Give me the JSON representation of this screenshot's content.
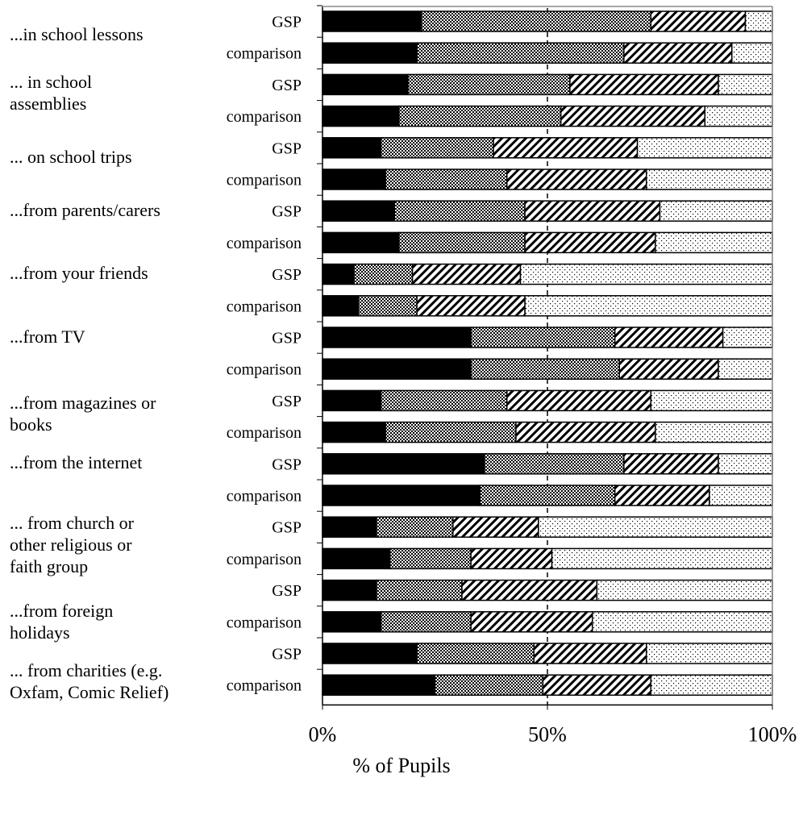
{
  "chart_data": {
    "type": "bar",
    "orientation": "horizontal",
    "stacked": "percent",
    "xlabel": "% of Pupils",
    "xlim": [
      0,
      100
    ],
    "x_ticks": [
      "0%",
      "50%",
      "100%"
    ],
    "gridline_at": 50,
    "groups": [
      "...in school lessons",
      "... in school assemblies",
      "... on school trips",
      "...from parents/carers",
      "...from your friends",
      "...from TV",
      "...from magazines or books",
      "...from the internet",
      "... from church or other religious or faith group",
      "...from foreign holidays",
      "... from charities (e.g. Oxfam, Comic Relief)"
    ],
    "group_label_lines": [
      [
        "...in school lessons"
      ],
      [
        "... in school",
        "assemblies"
      ],
      [
        "... on school trips"
      ],
      [
        "...from parents/carers"
      ],
      [
        "...from your friends"
      ],
      [
        "...from TV"
      ],
      [
        "...from magazines or",
        "books"
      ],
      [
        "...from the internet"
      ],
      [
        "... from church or",
        "other religious or",
        "faith group"
      ],
      [
        "...from foreign",
        "holidays"
      ],
      [
        "... from charities (e.g.",
        "Oxfam, Comic Relief)"
      ]
    ],
    "bar_labels": [
      "GSP",
      "comparison",
      "GSP",
      "comparison",
      "GSP",
      "comparison",
      "GSP",
      "comparison",
      "GSP",
      "comparison",
      "GSP",
      "comparison",
      "GSP",
      "comparison",
      "GSP",
      "comparison",
      "GSP",
      "comparison",
      "GSP",
      "comparison",
      "GSP",
      "comparison"
    ],
    "segment_styles": [
      "solid-black",
      "dense-dots",
      "diagonal-hatch",
      "sparse-dots"
    ],
    "bars": [
      [
        22,
        51,
        21,
        6
      ],
      [
        21,
        46,
        24,
        9
      ],
      [
        19,
        36,
        33,
        12
      ],
      [
        17,
        36,
        32,
        15
      ],
      [
        13,
        25,
        32,
        30
      ],
      [
        14,
        27,
        31,
        28
      ],
      [
        16,
        29,
        30,
        25
      ],
      [
        17,
        28,
        29,
        26
      ],
      [
        7,
        13,
        24,
        56
      ],
      [
        8,
        13,
        24,
        55
      ],
      [
        33,
        32,
        24,
        11
      ],
      [
        33,
        33,
        22,
        12
      ],
      [
        13,
        28,
        32,
        27
      ],
      [
        14,
        29,
        31,
        26
      ],
      [
        36,
        31,
        21,
        12
      ],
      [
        35,
        30,
        21,
        14
      ],
      [
        12,
        17,
        19,
        52
      ],
      [
        15,
        18,
        18,
        49
      ],
      [
        12,
        19,
        30,
        39
      ],
      [
        13,
        20,
        27,
        40
      ],
      [
        21,
        26,
        25,
        28
      ],
      [
        25,
        24,
        24,
        27
      ]
    ]
  }
}
